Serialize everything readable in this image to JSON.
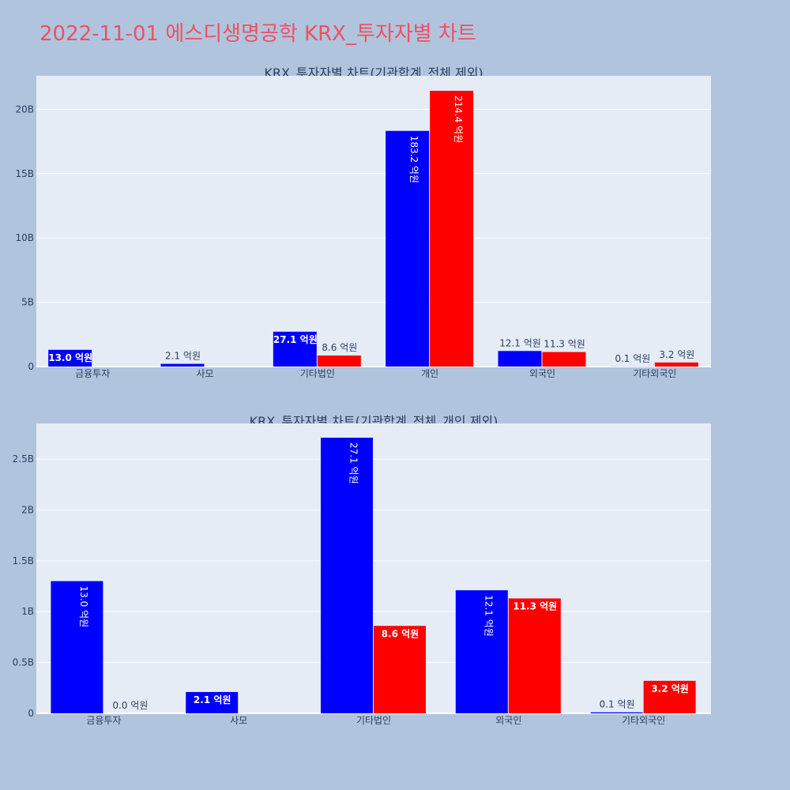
{
  "page": {
    "title": "2022-11-01 에스디생명공학 KRX_투자자별 차트"
  },
  "colors": {
    "background": "#b0c4de",
    "plot_bg": "#e5ecf6",
    "grid": "#ffffff",
    "series_a": "#0000ff",
    "series_b": "#ff0000",
    "title": "#ef5060"
  },
  "chart_data": [
    {
      "type": "bar",
      "title": "KRX_투자자별 차트(기관합계_전체 제외)",
      "categories": [
        "금융투자",
        "사모",
        "기타법인",
        "개인",
        "외국인",
        "기타외국인"
      ],
      "series": [
        {
          "color": "#0000ff",
          "values": [
            1.3,
            0.21,
            2.71,
            18.32,
            1.21,
            0.01
          ],
          "labels": [
            "13.0 억원",
            "2.1 억원",
            "27.1 억원",
            "183.2 억원",
            "12.1 억원",
            "0.1 억원"
          ]
        },
        {
          "color": "#ff0000",
          "values": [
            0.0,
            0.0,
            0.86,
            21.44,
            1.13,
            0.32
          ],
          "labels": [
            "",
            "",
            "8.6 억원",
            "214.4 억원",
            "11.3 억원",
            "3.2 억원"
          ]
        }
      ],
      "ylim": [
        0,
        22.6
      ],
      "yticks": [
        0,
        5,
        10,
        15,
        20
      ],
      "ytick_labels": [
        "0",
        "5B",
        "10B",
        "15B",
        "20B"
      ],
      "grid": true
    },
    {
      "type": "bar",
      "title": "KRX_투자자별 차트(기관합계_전체_개인 제외)",
      "categories": [
        "금융투자",
        "사모",
        "기타법인",
        "외국인",
        "기타외국인"
      ],
      "series": [
        {
          "color": "#0000ff",
          "values": [
            1.3,
            0.21,
            2.71,
            1.21,
            0.01
          ],
          "labels": [
            "13.0 억원",
            "2.1 억원",
            "27.1 억원",
            "12.1 억원",
            "0.1 억원"
          ]
        },
        {
          "color": "#ff0000",
          "values": [
            0.0,
            0.0,
            0.86,
            1.13,
            0.32
          ],
          "labels": [
            "0.0 억원",
            "",
            "8.6 억원",
            "11.3 억원",
            "3.2 억원"
          ]
        }
      ],
      "ylim": [
        0,
        2.85
      ],
      "yticks": [
        0,
        0.5,
        1,
        1.5,
        2,
        2.5
      ],
      "ytick_labels": [
        "0",
        "0.5B",
        "1B",
        "1.5B",
        "2B",
        "2.5B"
      ],
      "grid": true
    }
  ]
}
